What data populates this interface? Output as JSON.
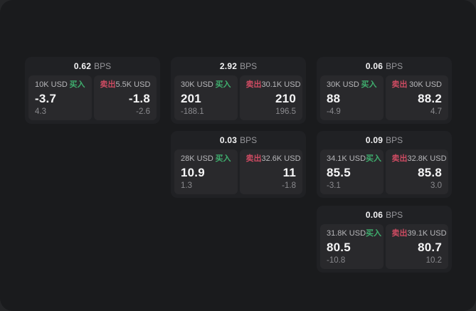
{
  "units": {
    "bps": "BPS"
  },
  "labels": {
    "buy": "买入",
    "sell": "卖出"
  },
  "colors": {
    "background": "#1a1b1d",
    "card": "#202124",
    "panel": "#29292c",
    "buy_green": "#3fae6e",
    "sell_red": "#cd4b62",
    "value_white": "#f5f5f6",
    "label_gray": "#b7b7ba",
    "sub_gray": "#8a8a8e"
  },
  "cards": [
    {
      "bps": "0.62",
      "buy": {
        "notional": "10K USD",
        "price": "-3.7",
        "sub": "4.3"
      },
      "sell": {
        "notional": "5.5K USD",
        "price": "-1.8",
        "sub": "-2.6"
      }
    },
    {
      "bps": "2.92",
      "buy": {
        "notional": "30K USD",
        "price": "201",
        "sub": "-188.1"
      },
      "sell": {
        "notional": "30.1K USD",
        "price": "210",
        "sub": "196.5"
      }
    },
    {
      "bps": "0.06",
      "buy": {
        "notional": "30K USD",
        "price": "88",
        "sub": "-4.9"
      },
      "sell": {
        "notional": "30K USD",
        "price": "88.2",
        "sub": "4.7"
      }
    },
    {
      "bps": "0.03",
      "buy": {
        "notional": "28K USD",
        "price": "10.9",
        "sub": "1.3"
      },
      "sell": {
        "notional": "32.6K USD",
        "price": "11",
        "sub": "-1.8"
      }
    },
    {
      "bps": "0.09",
      "buy": {
        "notional": "34.1K USD",
        "price": "85.5",
        "sub": "-3.1"
      },
      "sell": {
        "notional": "32.8K USD",
        "price": "85.8",
        "sub": "3.0"
      }
    },
    {
      "bps": "0.06",
      "buy": {
        "notional": "31.8K USD",
        "price": "80.5",
        "sub": "-10.8"
      },
      "sell": {
        "notional": "39.1K USD",
        "price": "80.7",
        "sub": "10.2"
      }
    }
  ]
}
